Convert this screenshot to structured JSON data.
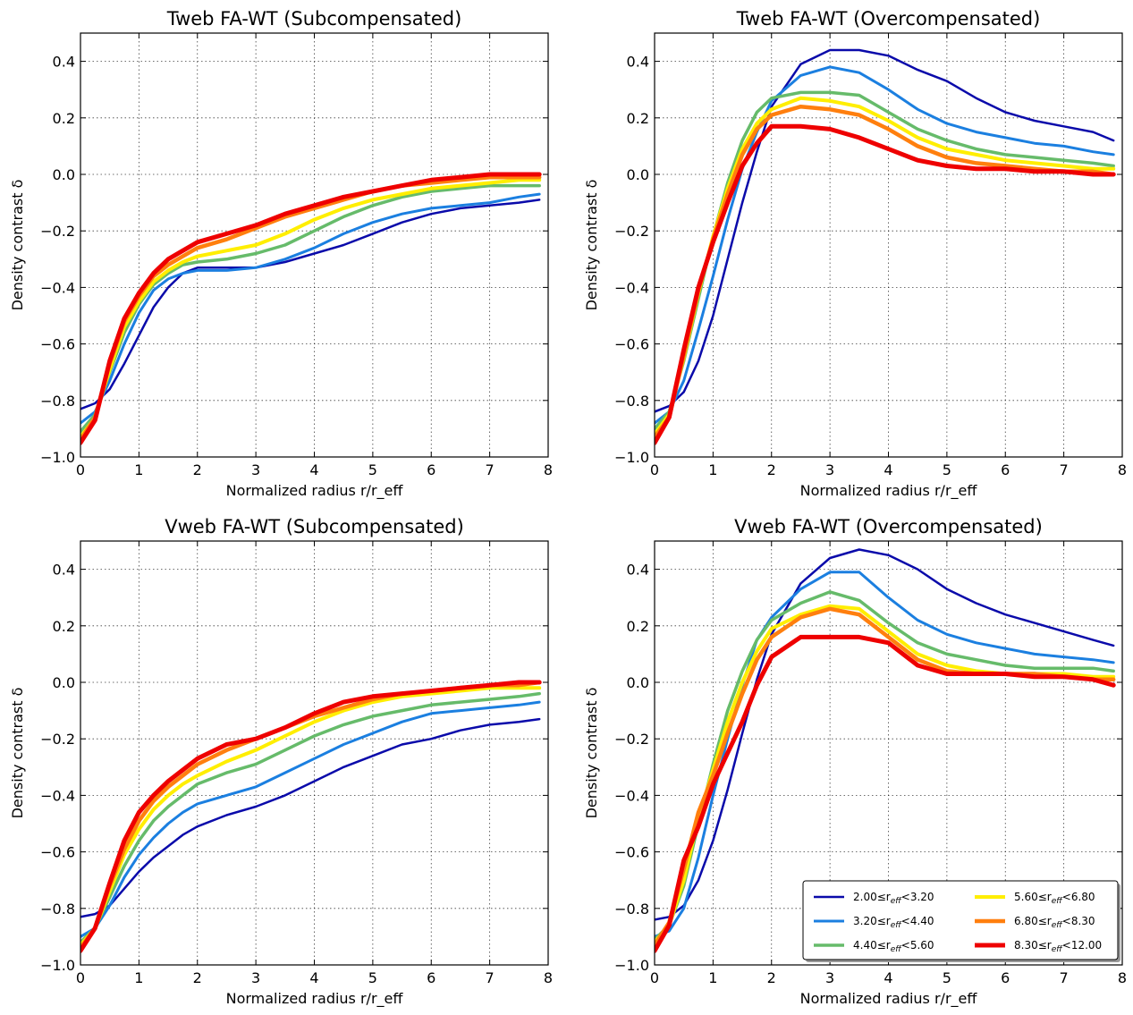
{
  "chart_data": [
    {
      "type": "line",
      "title": "Tweb FA-WT (Subcompensated)",
      "xlabel": "Normalized radius r/r_eff",
      "ylabel": "Density contrast δ",
      "xlim": [
        0,
        8
      ],
      "ylim": [
        -1.0,
        0.5
      ],
      "xticks": [
        "0",
        "1",
        "2",
        "3",
        "4",
        "5",
        "6",
        "7",
        "8"
      ],
      "yticks": [
        "0.4",
        "0.2",
        "0.0",
        "−0.2",
        "−0.4",
        "−0.6",
        "−0.8",
        "−1.0"
      ],
      "grid": true,
      "x": [
        0,
        0.25,
        0.5,
        0.75,
        1,
        1.25,
        1.5,
        1.75,
        2,
        2.5,
        3,
        3.5,
        4,
        4.5,
        5,
        5.5,
        6,
        6.5,
        7,
        7.5,
        7.85
      ],
      "series": [
        {
          "name": "2.00≤r_eff<3.20",
          "color": "#0a0aaa",
          "values": [
            -0.83,
            -0.81,
            -0.76,
            -0.67,
            -0.57,
            -0.47,
            -0.4,
            -0.35,
            -0.33,
            -0.33,
            -0.33,
            -0.31,
            -0.28,
            -0.25,
            -0.21,
            -0.17,
            -0.14,
            -0.12,
            -0.11,
            -0.1,
            -0.09
          ]
        },
        {
          "name": "3.20≤r_eff<4.40",
          "color": "#1b7fe0",
          "values": [
            -0.88,
            -0.84,
            -0.73,
            -0.6,
            -0.49,
            -0.41,
            -0.37,
            -0.35,
            -0.34,
            -0.34,
            -0.33,
            -0.3,
            -0.26,
            -0.21,
            -0.17,
            -0.14,
            -0.12,
            -0.11,
            -0.1,
            -0.08,
            -0.07
          ]
        },
        {
          "name": "4.40≤r_eff<5.60",
          "color": "#66bb6a",
          "values": [
            -0.91,
            -0.85,
            -0.7,
            -0.56,
            -0.46,
            -0.39,
            -0.35,
            -0.32,
            -0.31,
            -0.3,
            -0.28,
            -0.25,
            -0.2,
            -0.15,
            -0.11,
            -0.08,
            -0.06,
            -0.05,
            -0.04,
            -0.04,
            -0.04
          ]
        },
        {
          "name": "5.60≤r_eff<6.80",
          "color": "#ffee00",
          "values": [
            -0.93,
            -0.86,
            -0.69,
            -0.54,
            -0.45,
            -0.38,
            -0.34,
            -0.31,
            -0.29,
            -0.27,
            -0.25,
            -0.21,
            -0.16,
            -0.12,
            -0.09,
            -0.07,
            -0.05,
            -0.04,
            -0.03,
            -0.02,
            -0.02
          ]
        },
        {
          "name": "6.80≤r_eff<8.30",
          "color": "#ff7f0e",
          "values": [
            -0.94,
            -0.86,
            -0.67,
            -0.52,
            -0.43,
            -0.36,
            -0.32,
            -0.29,
            -0.26,
            -0.23,
            -0.19,
            -0.15,
            -0.12,
            -0.09,
            -0.06,
            -0.04,
            -0.03,
            -0.02,
            -0.01,
            -0.01,
            -0.01
          ]
        },
        {
          "name": "8.30≤r_eff<12.00",
          "color": "#ee0000",
          "values": [
            -0.95,
            -0.87,
            -0.66,
            -0.51,
            -0.42,
            -0.35,
            -0.3,
            -0.27,
            -0.24,
            -0.21,
            -0.18,
            -0.14,
            -0.11,
            -0.08,
            -0.06,
            -0.04,
            -0.02,
            -0.01,
            0.0,
            0.0,
            0.0
          ]
        }
      ]
    },
    {
      "type": "line",
      "title": "Tweb FA-WT (Overcompensated)",
      "xlabel": "Normalized radius r/r_eff",
      "ylabel": "Density contrast δ",
      "xlim": [
        0,
        8
      ],
      "ylim": [
        -1.0,
        0.5
      ],
      "xticks": [
        "0",
        "1",
        "2",
        "3",
        "4",
        "5",
        "6",
        "7",
        "8"
      ],
      "yticks": [
        "0.4",
        "0.2",
        "0.0",
        "−0.2",
        "−0.4",
        "−0.6",
        "−0.8",
        "−1.0"
      ],
      "grid": true,
      "x": [
        0,
        0.25,
        0.5,
        0.75,
        1,
        1.25,
        1.5,
        1.75,
        2,
        2.5,
        3,
        3.5,
        4,
        4.5,
        5,
        5.5,
        6,
        6.5,
        7,
        7.5,
        7.85
      ],
      "series": [
        {
          "name": "2.00≤r_eff<3.20",
          "color": "#0a0aaa",
          "values": [
            -0.84,
            -0.82,
            -0.77,
            -0.66,
            -0.5,
            -0.3,
            -0.1,
            0.08,
            0.24,
            0.39,
            0.44,
            0.44,
            0.42,
            0.37,
            0.33,
            0.27,
            0.22,
            0.19,
            0.17,
            0.15,
            0.12
          ]
        },
        {
          "name": "3.20≤r_eff<4.40",
          "color": "#1b7fe0",
          "values": [
            -0.88,
            -0.84,
            -0.73,
            -0.55,
            -0.36,
            -0.16,
            0.02,
            0.15,
            0.26,
            0.35,
            0.38,
            0.36,
            0.3,
            0.23,
            0.18,
            0.15,
            0.13,
            0.11,
            0.1,
            0.08,
            0.07
          ]
        },
        {
          "name": "4.40≤r_eff<5.60",
          "color": "#66bb6a",
          "values": [
            -0.9,
            -0.84,
            -0.66,
            -0.44,
            -0.22,
            -0.03,
            0.12,
            0.22,
            0.27,
            0.29,
            0.29,
            0.28,
            0.22,
            0.16,
            0.12,
            0.09,
            0.07,
            0.06,
            0.05,
            0.04,
            0.03
          ]
        },
        {
          "name": "5.60≤r_eff<6.80",
          "color": "#ffee00",
          "values": [
            -0.92,
            -0.85,
            -0.65,
            -0.42,
            -0.22,
            -0.05,
            0.09,
            0.18,
            0.23,
            0.27,
            0.26,
            0.24,
            0.19,
            0.13,
            0.09,
            0.07,
            0.05,
            0.04,
            0.03,
            0.02,
            0.02
          ]
        },
        {
          "name": "6.80≤r_eff<8.30",
          "color": "#ff7f0e",
          "values": [
            -0.93,
            -0.86,
            -0.64,
            -0.41,
            -0.23,
            -0.07,
            0.07,
            0.16,
            0.21,
            0.24,
            0.23,
            0.21,
            0.16,
            0.1,
            0.06,
            0.04,
            0.03,
            0.02,
            0.01,
            0.01,
            0.0
          ]
        },
        {
          "name": "8.30≤r_eff<12.00",
          "color": "#ee0000",
          "values": [
            -0.95,
            -0.86,
            -0.62,
            -0.4,
            -0.24,
            -0.1,
            0.03,
            0.11,
            0.17,
            0.17,
            0.16,
            0.13,
            0.09,
            0.05,
            0.03,
            0.02,
            0.02,
            0.01,
            0.01,
            0.0,
            0.0
          ]
        }
      ]
    },
    {
      "type": "line",
      "title": "Vweb FA-WT (Subcompensated)",
      "xlabel": "Normalized radius r/r_eff",
      "ylabel": "Density contrast δ",
      "xlim": [
        0,
        8
      ],
      "ylim": [
        -1.0,
        0.5
      ],
      "xticks": [
        "0",
        "1",
        "2",
        "3",
        "4",
        "5",
        "6",
        "7",
        "8"
      ],
      "yticks": [
        "0.4",
        "0.2",
        "0.0",
        "−0.2",
        "−0.4",
        "−0.6",
        "−0.8",
        "−1.0"
      ],
      "grid": true,
      "x": [
        0,
        0.25,
        0.5,
        0.75,
        1,
        1.25,
        1.5,
        1.75,
        2,
        2.5,
        3,
        3.5,
        4,
        4.5,
        5,
        5.5,
        6,
        6.5,
        7,
        7.5,
        7.85
      ],
      "series": [
        {
          "name": "2.00≤r_eff<3.20",
          "color": "#0a0aaa",
          "values": [
            -0.83,
            -0.82,
            -0.79,
            -0.73,
            -0.67,
            -0.62,
            -0.58,
            -0.54,
            -0.51,
            -0.47,
            -0.44,
            -0.4,
            -0.35,
            -0.3,
            -0.26,
            -0.22,
            -0.2,
            -0.17,
            -0.15,
            -0.14,
            -0.13
          ]
        },
        {
          "name": "3.20≤r_eff<4.40",
          "color": "#1b7fe0",
          "values": [
            -0.9,
            -0.87,
            -0.79,
            -0.69,
            -0.61,
            -0.55,
            -0.5,
            -0.46,
            -0.43,
            -0.4,
            -0.37,
            -0.32,
            -0.27,
            -0.22,
            -0.18,
            -0.14,
            -0.11,
            -0.1,
            -0.09,
            -0.08,
            -0.07
          ]
        },
        {
          "name": "4.40≤r_eff<5.60",
          "color": "#66bb6a",
          "values": [
            -0.92,
            -0.87,
            -0.76,
            -0.65,
            -0.56,
            -0.49,
            -0.44,
            -0.4,
            -0.36,
            -0.32,
            -0.29,
            -0.24,
            -0.19,
            -0.15,
            -0.12,
            -0.1,
            -0.08,
            -0.07,
            -0.06,
            -0.05,
            -0.04
          ]
        },
        {
          "name": "5.60≤r_eff<6.80",
          "color": "#ffee00",
          "values": [
            -0.93,
            -0.87,
            -0.74,
            -0.61,
            -0.52,
            -0.45,
            -0.4,
            -0.36,
            -0.33,
            -0.28,
            -0.24,
            -0.19,
            -0.14,
            -0.1,
            -0.07,
            -0.05,
            -0.04,
            -0.03,
            -0.02,
            -0.02,
            -0.02
          ]
        },
        {
          "name": "6.80≤r_eff<8.30",
          "color": "#ff7f0e",
          "values": [
            -0.94,
            -0.87,
            -0.72,
            -0.59,
            -0.49,
            -0.42,
            -0.37,
            -0.33,
            -0.29,
            -0.24,
            -0.2,
            -0.16,
            -0.12,
            -0.09,
            -0.06,
            -0.04,
            -0.03,
            -0.02,
            -0.01,
            -0.01,
            0.0
          ]
        },
        {
          "name": "8.30≤r_eff<12.00",
          "color": "#ee0000",
          "values": [
            -0.95,
            -0.87,
            -0.71,
            -0.56,
            -0.46,
            -0.4,
            -0.35,
            -0.31,
            -0.27,
            -0.22,
            -0.2,
            -0.16,
            -0.11,
            -0.07,
            -0.05,
            -0.04,
            -0.03,
            -0.02,
            -0.01,
            0.0,
            0.0
          ]
        }
      ]
    },
    {
      "type": "line",
      "title": "Vweb FA-WT (Overcompensated)",
      "xlabel": "Normalized radius r/r_eff",
      "ylabel": "Density contrast δ",
      "xlim": [
        0,
        8
      ],
      "ylim": [
        -1.0,
        0.5
      ],
      "xticks": [
        "0",
        "1",
        "2",
        "3",
        "4",
        "5",
        "6",
        "7",
        "8"
      ],
      "yticks": [
        "0.4",
        "0.2",
        "0.0",
        "−0.2",
        "−0.4",
        "−0.6",
        "−0.8",
        "−1.0"
      ],
      "grid": true,
      "legend": "lower-right",
      "x": [
        0,
        0.25,
        0.5,
        0.75,
        1,
        1.25,
        1.5,
        1.75,
        2,
        2.5,
        3,
        3.5,
        4,
        4.5,
        5,
        5.5,
        6,
        6.5,
        7,
        7.5,
        7.85
      ],
      "series": [
        {
          "name": "2.00≤r_eff<3.20",
          "color": "#0a0aaa",
          "values": [
            -0.84,
            -0.83,
            -0.79,
            -0.7,
            -0.56,
            -0.38,
            -0.18,
            0.01,
            0.17,
            0.35,
            0.44,
            0.47,
            0.45,
            0.4,
            0.33,
            0.28,
            0.24,
            0.21,
            0.18,
            0.15,
            0.13
          ]
        },
        {
          "name": "3.20≤r_eff<4.40",
          "color": "#1b7fe0",
          "values": [
            -0.9,
            -0.88,
            -0.8,
            -0.62,
            -0.4,
            -0.2,
            -0.01,
            0.15,
            0.23,
            0.33,
            0.39,
            0.39,
            0.3,
            0.22,
            0.17,
            0.14,
            0.12,
            0.1,
            0.09,
            0.08,
            0.07
          ]
        },
        {
          "name": "4.40≤r_eff<5.60",
          "color": "#66bb6a",
          "values": [
            -0.91,
            -0.86,
            -0.72,
            -0.5,
            -0.29,
            -0.1,
            0.04,
            0.15,
            0.22,
            0.28,
            0.32,
            0.29,
            0.21,
            0.14,
            0.1,
            0.08,
            0.06,
            0.05,
            0.05,
            0.05,
            0.04
          ]
        },
        {
          "name": "5.60≤r_eff<6.80",
          "color": "#ffee00",
          "values": [
            -0.92,
            -0.86,
            -0.7,
            -0.48,
            -0.31,
            -0.14,
            0.0,
            0.11,
            0.19,
            0.24,
            0.27,
            0.26,
            0.18,
            0.1,
            0.06,
            0.04,
            0.03,
            0.03,
            0.03,
            0.02,
            0.02
          ]
        },
        {
          "name": "6.80≤r_eff<8.30",
          "color": "#ff7f0e",
          "values": [
            -0.93,
            -0.85,
            -0.66,
            -0.46,
            -0.33,
            -0.18,
            -0.04,
            0.08,
            0.16,
            0.23,
            0.26,
            0.24,
            0.16,
            0.08,
            0.04,
            0.03,
            0.03,
            0.03,
            0.02,
            0.01,
            0.01
          ]
        },
        {
          "name": "8.30≤r_eff<12.00",
          "color": "#ee0000",
          "values": [
            -0.95,
            -0.86,
            -0.63,
            -0.51,
            -0.36,
            -0.25,
            -0.14,
            -0.01,
            0.09,
            0.16,
            0.16,
            0.16,
            0.14,
            0.06,
            0.03,
            0.03,
            0.03,
            0.02,
            0.02,
            0.01,
            -0.01
          ]
        }
      ]
    }
  ]
}
